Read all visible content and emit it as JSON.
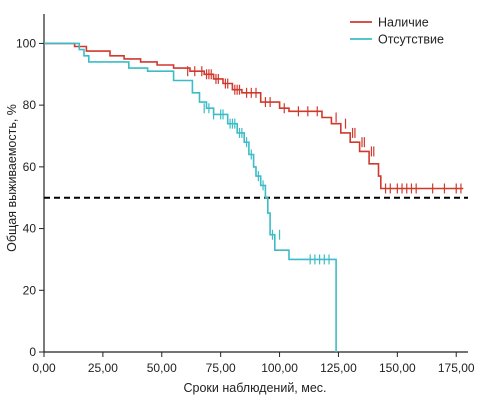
{
  "chart_data": {
    "type": "line",
    "title": "",
    "xlabel": "Сроки наблюдений, мес.",
    "ylabel": "Общая выживаемость, %",
    "xlim": [
      0,
      180
    ],
    "ylim": [
      0,
      105
    ],
    "x_ticks": [
      0,
      25,
      50,
      75,
      100,
      125,
      150,
      175
    ],
    "x_tick_labels": [
      "0,00",
      "25,00",
      "50,00",
      "75,00",
      "100,00",
      "125,00",
      "150,00",
      "175,00"
    ],
    "y_ticks": [
      0,
      20,
      40,
      60,
      80,
      100
    ],
    "y_tick_labels": [
      "0",
      "20",
      "40",
      "60",
      "80",
      "100"
    ],
    "grid": false,
    "legend_position": "top-right",
    "reference_line": {
      "y": 50,
      "style": "dashed",
      "color": "#000000"
    },
    "series": [
      {
        "name": "Наличие",
        "color": "#d0392e",
        "step": [
          [
            0,
            100
          ],
          [
            13,
            100
          ],
          [
            13,
            99
          ],
          [
            18,
            99
          ],
          [
            18,
            97.5
          ],
          [
            28,
            97.5
          ],
          [
            28,
            96
          ],
          [
            34,
            96
          ],
          [
            34,
            95
          ],
          [
            41,
            95
          ],
          [
            41,
            94
          ],
          [
            48,
            94
          ],
          [
            48,
            93
          ],
          [
            55,
            93
          ],
          [
            55,
            92
          ],
          [
            62,
            92
          ],
          [
            62,
            91
          ],
          [
            68,
            91
          ],
          [
            68,
            90
          ],
          [
            72,
            90
          ],
          [
            72,
            88.5
          ],
          [
            76,
            88.5
          ],
          [
            76,
            87
          ],
          [
            80,
            87
          ],
          [
            80,
            85
          ],
          [
            84,
            85
          ],
          [
            84,
            84
          ],
          [
            92,
            84
          ],
          [
            92,
            81
          ],
          [
            100,
            81
          ],
          [
            100,
            79
          ],
          [
            104,
            79
          ],
          [
            104,
            78
          ],
          [
            118,
            78
          ],
          [
            118,
            76
          ],
          [
            122,
            76
          ],
          [
            122,
            74
          ],
          [
            126,
            74
          ],
          [
            126,
            71
          ],
          [
            130,
            71
          ],
          [
            130,
            68
          ],
          [
            134,
            68
          ],
          [
            134,
            65
          ],
          [
            138,
            65
          ],
          [
            138,
            61
          ],
          [
            142,
            61
          ],
          [
            142,
            57
          ],
          [
            143,
            57
          ],
          [
            143,
            53
          ],
          [
            178,
            53
          ]
        ],
        "censored": [
          [
            61,
            91
          ],
          [
            64,
            91
          ],
          [
            67,
            91
          ],
          [
            69,
            90
          ],
          [
            70,
            90
          ],
          [
            71,
            90
          ],
          [
            73,
            88.5
          ],
          [
            74,
            88.5
          ],
          [
            77,
            87
          ],
          [
            78,
            87
          ],
          [
            81,
            85
          ],
          [
            82,
            85
          ],
          [
            83,
            85
          ],
          [
            86,
            84
          ],
          [
            88,
            84
          ],
          [
            90,
            84
          ],
          [
            94,
            81
          ],
          [
            96,
            81
          ],
          [
            102,
            79
          ],
          [
            108,
            78
          ],
          [
            112,
            78
          ],
          [
            116,
            78
          ],
          [
            124,
            76
          ],
          [
            128,
            74
          ],
          [
            131,
            71
          ],
          [
            132,
            71
          ],
          [
            135,
            68
          ],
          [
            136,
            68
          ],
          [
            139,
            65
          ],
          [
            140,
            65
          ],
          [
            145,
            53
          ],
          [
            147,
            53
          ],
          [
            150,
            53
          ],
          [
            152,
            53
          ],
          [
            154,
            53
          ],
          [
            156,
            53
          ],
          [
            158,
            53
          ],
          [
            165,
            53
          ],
          [
            170,
            53
          ],
          [
            175,
            53
          ],
          [
            177,
            53
          ]
        ]
      },
      {
        "name": "Отсутствие",
        "color": "#3cbcc6",
        "step": [
          [
            0,
            100
          ],
          [
            15,
            100
          ],
          [
            15,
            98
          ],
          [
            17,
            98
          ],
          [
            17,
            96
          ],
          [
            19,
            96
          ],
          [
            19,
            94
          ],
          [
            36,
            94
          ],
          [
            36,
            92
          ],
          [
            44,
            92
          ],
          [
            44,
            91
          ],
          [
            55,
            91
          ],
          [
            55,
            88
          ],
          [
            63,
            88
          ],
          [
            63,
            84
          ],
          [
            66,
            84
          ],
          [
            66,
            81
          ],
          [
            69,
            81
          ],
          [
            69,
            79
          ],
          [
            72,
            79
          ],
          [
            72,
            77
          ],
          [
            78,
            77
          ],
          [
            78,
            74
          ],
          [
            82,
            74
          ],
          [
            82,
            71
          ],
          [
            85,
            71
          ],
          [
            85,
            68
          ],
          [
            87,
            68
          ],
          [
            87,
            64
          ],
          [
            89,
            64
          ],
          [
            89,
            60
          ],
          [
            90,
            60
          ],
          [
            90,
            57
          ],
          [
            92,
            57
          ],
          [
            92,
            54
          ],
          [
            94,
            54
          ],
          [
            94,
            50
          ],
          [
            95,
            50
          ],
          [
            95,
            45
          ],
          [
            96,
            45
          ],
          [
            96,
            38
          ],
          [
            98,
            38
          ],
          [
            98,
            33
          ],
          [
            104,
            33
          ],
          [
            104,
            30
          ],
          [
            124,
            30
          ],
          [
            124,
            0
          ]
        ],
        "censored": [
          [
            68,
            79
          ],
          [
            70,
            79
          ],
          [
            72,
            77
          ],
          [
            75,
            77
          ],
          [
            76,
            77
          ],
          [
            79,
            74
          ],
          [
            80,
            74
          ],
          [
            81,
            74
          ],
          [
            83,
            71
          ],
          [
            84,
            71
          ],
          [
            86,
            68
          ],
          [
            88,
            64
          ],
          [
            91,
            57
          ],
          [
            93,
            54
          ],
          [
            97,
            38
          ],
          [
            100,
            38
          ],
          [
            113,
            30
          ],
          [
            115,
            30
          ],
          [
            117,
            30
          ],
          [
            119,
            30
          ],
          [
            121,
            30
          ]
        ]
      }
    ]
  }
}
